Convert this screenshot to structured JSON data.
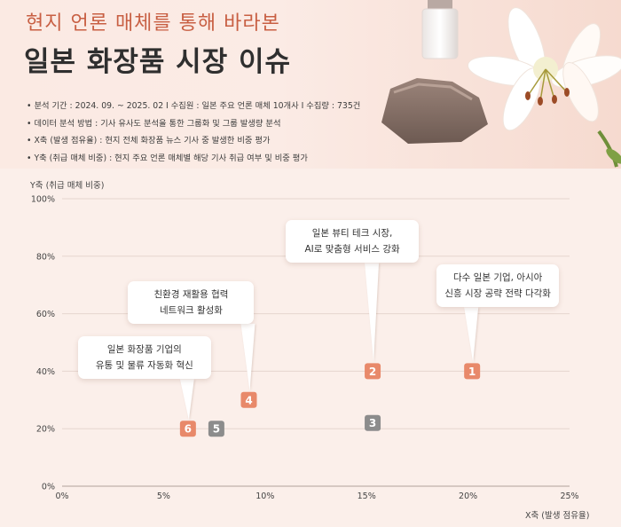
{
  "header": {
    "subtitle": "현지 언론 매체를 통해 바라본",
    "title": "일본 화장품 시장 이슈",
    "notes": [
      "• 분석 기간 : 2024. 09. ~ 2025. 02  I   수집원 : 일본 주요 언론 매체 10개사   I   수집량 : 735건",
      "• 데이터 분석 방법 : 기사 유사도 분석을 통한 그룹화 및 그룹 발생량 분석",
      "• X축 (발생 점유율) : 현지 전체 화장품 뉴스 기사 중 발생한 비중 평가",
      "• Y축 (취급 매체 비중) : 현지 주요 언론 매체별 해당 기사 취급 여부 및 비중 평가"
    ]
  },
  "colors": {
    "marker_primary": "#e8896a",
    "marker_secondary": "#8c8c8c",
    "accent": "#c85f43"
  },
  "chart_data": {
    "type": "scatter",
    "xlabel": "X축 (발생 점유율)",
    "ylabel": "Y축 (취급 매체 비중)",
    "xlim": [
      0,
      25
    ],
    "ylim": [
      0,
      100
    ],
    "x_ticks": [
      "0%",
      "5%",
      "10%",
      "15%",
      "20%",
      "25%"
    ],
    "y_ticks": [
      "0%",
      "20%",
      "40%",
      "60%",
      "80%",
      "100%"
    ],
    "grid": true,
    "points": [
      {
        "label": "1",
        "x": 20.2,
        "y": 40,
        "style": "primary",
        "callout": [
          "다수 일본 기업, 아시아",
          "신흥 시장 공략 전략 다각화"
        ]
      },
      {
        "label": "2",
        "x": 15.3,
        "y": 40,
        "style": "primary",
        "callout": [
          "일본 뷰티 테크 시장,",
          "AI로 맞춤형 서비스 강화"
        ]
      },
      {
        "label": "3",
        "x": 15.3,
        "y": 22,
        "style": "secondary",
        "callout": []
      },
      {
        "label": "4",
        "x": 9.2,
        "y": 30,
        "style": "primary",
        "callout": [
          "친환경 재활용 협력",
          "네트워크 활성화"
        ]
      },
      {
        "label": "5",
        "x": 7.6,
        "y": 20,
        "style": "secondary",
        "callout": []
      },
      {
        "label": "6",
        "x": 6.2,
        "y": 20,
        "style": "primary",
        "callout": [
          "일본 화장품 기업의",
          "유통 및 물류 자동화 혁신"
        ]
      }
    ]
  }
}
